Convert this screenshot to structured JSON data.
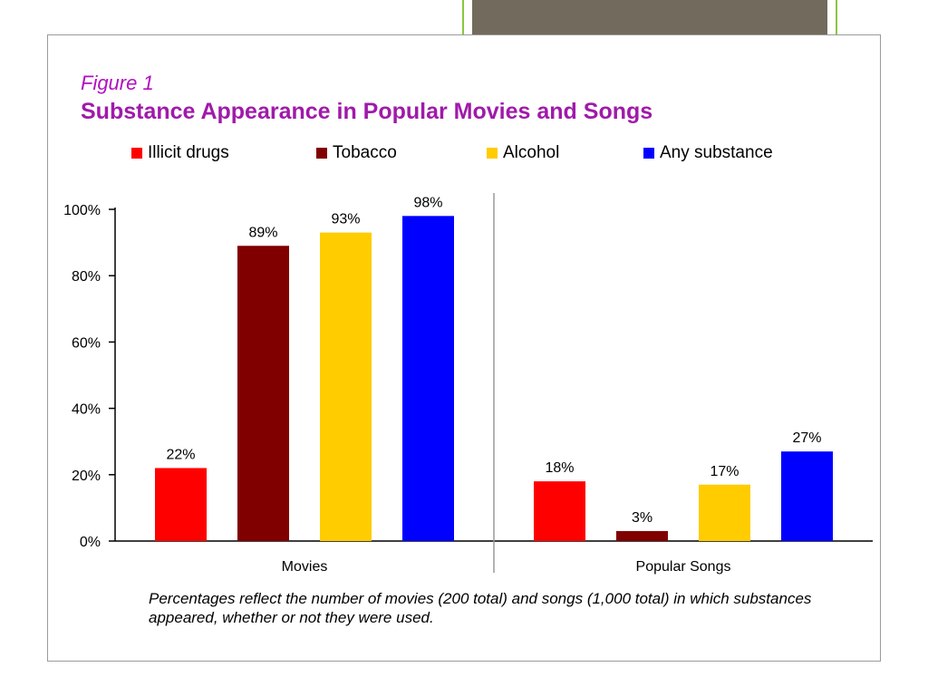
{
  "figure_label": "Figure 1",
  "title": "Substance Appearance in Popular Movies and Songs",
  "note": "Percentages reflect the number of movies (200 total) and songs (1,000 total) in which substances appeared, whether or not they were used.",
  "colors": {
    "Illicit drugs": "#ff0000",
    "Tobacco": "#800000",
    "Alcohol": "#ffcc00",
    "Any substance": "#0000ff",
    "title": "#a01aaa",
    "frame_accent": "#8cc63f",
    "frame_fill": "#726a5c"
  },
  "chart_data": {
    "type": "bar",
    "categories": [
      "Movies",
      "Popular Songs"
    ],
    "series": [
      {
        "name": "Illicit drugs",
        "values": [
          22,
          18
        ],
        "labels": [
          "22%",
          "18%"
        ]
      },
      {
        "name": "Tobacco",
        "values": [
          89,
          3
        ],
        "labels": [
          "89%",
          "3%"
        ]
      },
      {
        "name": "Alcohol",
        "values": [
          93,
          17
        ],
        "labels": [
          "93%",
          "17%"
        ]
      },
      {
        "name": "Any substance",
        "values": [
          98,
          27
        ],
        "labels": [
          "98%",
          "27%"
        ]
      }
    ],
    "ylim": [
      0,
      100
    ],
    "yticks": [
      "0%",
      "20%",
      "40%",
      "60%",
      "80%",
      "100%"
    ],
    "xlabel": "",
    "ylabel": "",
    "legend": "top",
    "grid": false
  }
}
